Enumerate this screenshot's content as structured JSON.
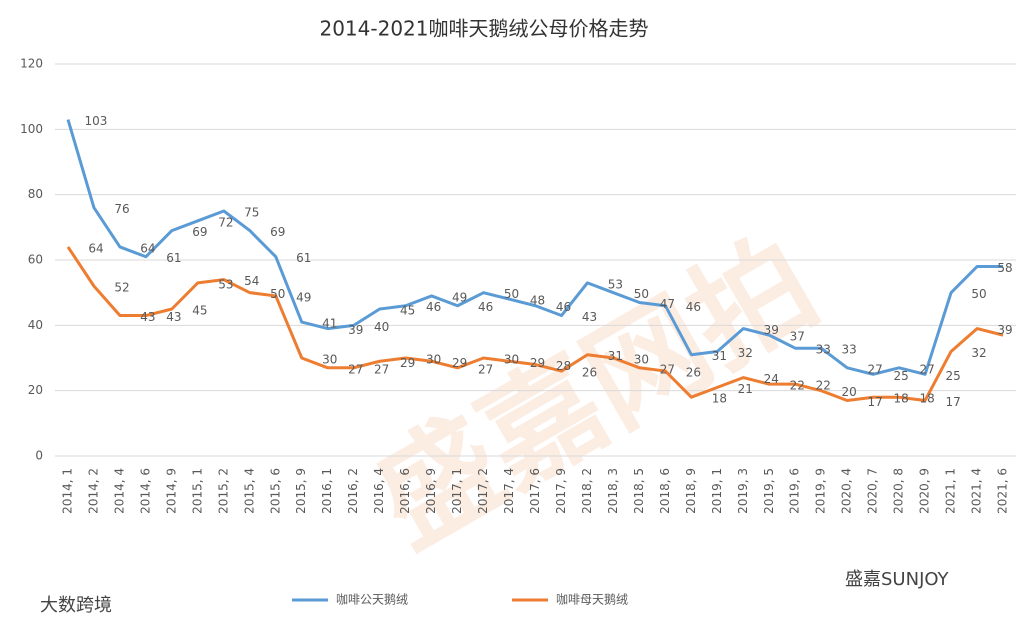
{
  "chart_data": {
    "type": "line",
    "title": "2014-2021咖啡天鹅绒公母价格走势",
    "categories": [
      "2014, 1",
      "2014, 2",
      "2014, 4",
      "2014, 6",
      "2014, 9",
      "2015, 1",
      "2015, 2",
      "2015, 4",
      "2015, 6",
      "2015, 9",
      "2016, 1",
      "2016, 2",
      "2016, 4",
      "2016, 6",
      "2016, 9",
      "2017, 1",
      "2017, 2",
      "2017, 4",
      "2017, 6",
      "2017, 9",
      "2018, 2",
      "2018, 3",
      "2018, 5",
      "2018, 6",
      "2018, 9",
      "2019, 1",
      "2019, 3",
      "2019, 5",
      "2019, 6",
      "2019, 9",
      "2020, 4",
      "2020, 7",
      "2020, 8",
      "2020, 9",
      "2021, 1",
      "2021, 4",
      "2021, 6"
    ],
    "series": [
      {
        "name": "咖啡公天鹅绒",
        "color": "#5b9bd5",
        "values": [
          103,
          76,
          64,
          61,
          69,
          72,
          75,
          69,
          61,
          41,
          39,
          40,
          45,
          46,
          49,
          46,
          50,
          48,
          46,
          43,
          53,
          50,
          47,
          46,
          31,
          32,
          39,
          37,
          33,
          33,
          27,
          25,
          27,
          25,
          50,
          58,
          58
        ]
      },
      {
        "name": "咖啡母天鹅绒",
        "color": "#ed7d31",
        "values": [
          64,
          52,
          43,
          43,
          45,
          53,
          54,
          50,
          49,
          30,
          27,
          27,
          29,
          30,
          29,
          27,
          30,
          29,
          28,
          26,
          31,
          30,
          27,
          26,
          18,
          21,
          24,
          22,
          22,
          20,
          17,
          18,
          18,
          17,
          32,
          39,
          37
        ]
      }
    ],
    "ylim": [
      0,
      120
    ],
    "yticks": [
      0,
      20,
      40,
      60,
      80,
      100,
      120
    ],
    "grid": true,
    "legend": "bottom",
    "watermarks": [
      "盛嘉网拍",
      "大数跨境",
      "盛嘉SUNJOY"
    ]
  }
}
